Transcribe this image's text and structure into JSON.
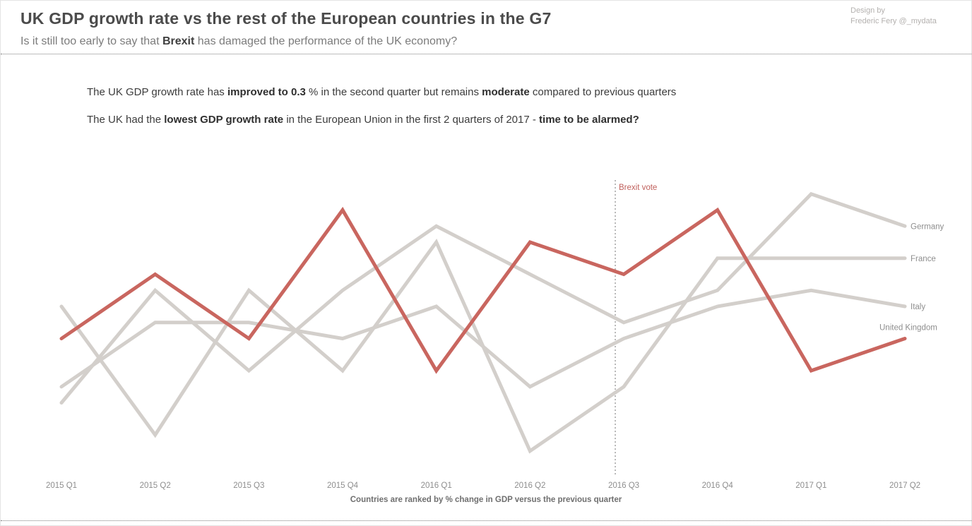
{
  "header": {
    "title": "UK GDP growth rate vs the rest of the European countries in the G7",
    "subtitle_segments": [
      {
        "text": "Is it still too early to say that "
      },
      {
        "text": "Brexit",
        "bold": true
      },
      {
        "text": " has damaged the performance of the UK economy?"
      }
    ],
    "credit": {
      "line1": "Design by",
      "line2": "Frederic Fery @_mydata"
    }
  },
  "annotations": {
    "line1_segments": [
      {
        "text": "The UK GDP growth rate has "
      },
      {
        "text": "improved to 0.3",
        "bold": true
      },
      {
        "text": " % in the second quarter but remains "
      },
      {
        "text": "moderate",
        "bold": true
      },
      {
        "text": " compared to previous quarters"
      }
    ],
    "line2_segments": [
      {
        "text": "The UK had the "
      },
      {
        "text": "lowest GDP growth rate",
        "bold": true
      },
      {
        "text": " in the European Union in the first 2 quarters of 2017 - "
      },
      {
        "text": "time to be alarmed?",
        "bold": true
      }
    ]
  },
  "chart_data": {
    "type": "line",
    "x": [
      "2015 Q1",
      "2015 Q2",
      "2015 Q3",
      "2015 Q4",
      "2016 Q1",
      "2016 Q2",
      "2016 Q3",
      "2016 Q4",
      "2017 Q1",
      "2017 Q2"
    ],
    "xlabel": "",
    "ylabel": "",
    "ylim": [
      -0.15,
      0.85
    ],
    "grid": false,
    "legend_position": "right-end-labels",
    "series": [
      {
        "name": "Germany",
        "color": "#d3cfcb",
        "values": [
          0.1,
          0.45,
          0.2,
          0.45,
          0.65,
          0.5,
          0.35,
          0.45,
          0.75,
          0.65
        ]
      },
      {
        "name": "France",
        "color": "#d3cfcb",
        "values": [
          0.4,
          0.0,
          0.45,
          0.2,
          0.6,
          -0.05,
          0.15,
          0.55,
          0.55,
          0.55
        ]
      },
      {
        "name": "Italy",
        "color": "#d3cfcb",
        "values": [
          0.15,
          0.35,
          0.35,
          0.3,
          0.4,
          0.15,
          0.3,
          0.4,
          0.45,
          0.4
        ]
      },
      {
        "name": "United Kingdom",
        "color": "#c9665f",
        "values": [
          0.3,
          0.5,
          0.3,
          0.7,
          0.2,
          0.6,
          0.5,
          0.7,
          0.2,
          0.3
        ]
      }
    ],
    "vline": {
      "label": "Brexit vote",
      "after_x": "2016 Q2",
      "color": "#c0605c",
      "style": "dotted"
    },
    "caption": "Countries are ranked by % change in GDP versus the previous quarter",
    "label_color": "#8e8e8e"
  }
}
